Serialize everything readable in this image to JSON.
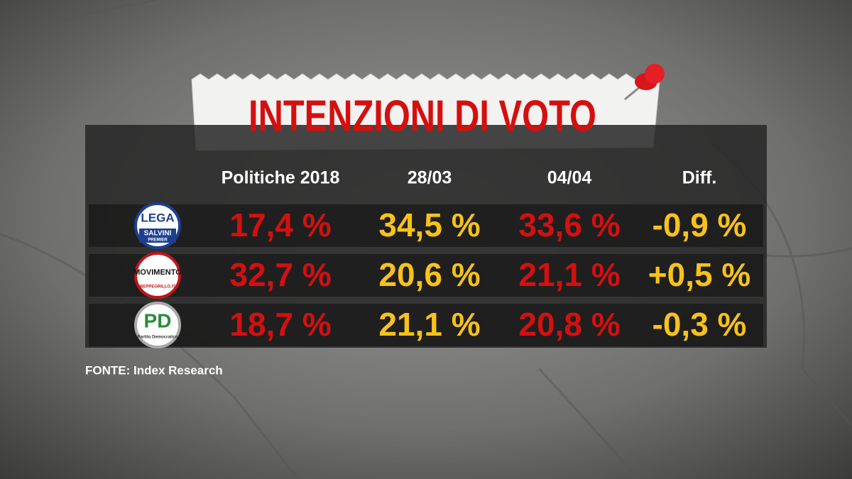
{
  "header": {
    "title": "INTENZIONI DI VOTO"
  },
  "table": {
    "columns": [
      "Politiche 2018",
      "28/03",
      "04/04",
      "Diff."
    ],
    "rows": [
      {
        "logo": [
          "LEGA",
          "SALVINI",
          "PREMIER"
        ],
        "cells": [
          "17,4 %",
          "34,5 %",
          "33,6 %",
          "-0,9 %"
        ]
      },
      {
        "logo": [
          "MOVIMENTO",
          "BEPPEGRILLO.IT"
        ],
        "cells": [
          "32,7 %",
          "20,6 %",
          "21,1 %",
          "+0,5 %"
        ]
      },
      {
        "logo": [
          "PD",
          "Partito Democratico"
        ],
        "cells": [
          "18,7 %",
          "21,1 %",
          "20,8 %",
          "-0,3 %"
        ]
      }
    ]
  },
  "footer": {
    "source": "FONTE:  Index Research"
  }
}
